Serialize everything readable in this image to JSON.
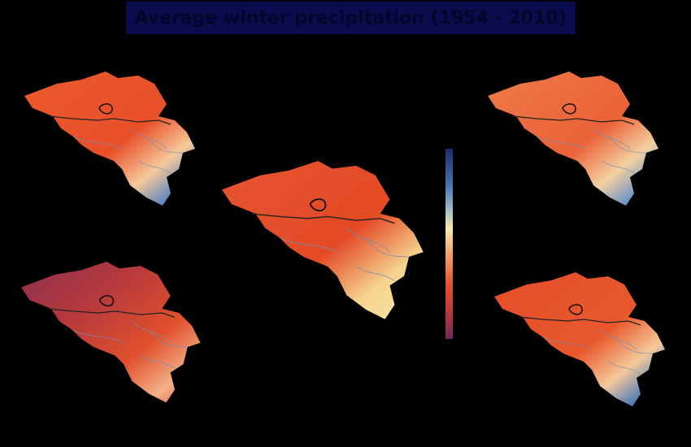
{
  "title": "Average winter precipitation (1954 - 2010)"
}
